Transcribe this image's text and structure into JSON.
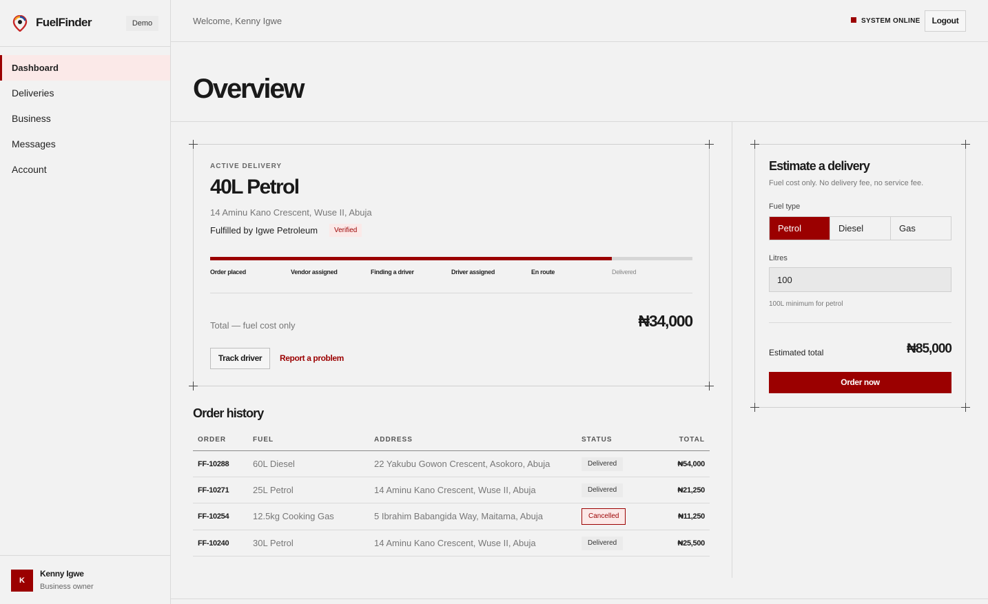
{
  "brand": {
    "name": "FuelFinder",
    "badge": "Demo",
    "logo_icon": "fuelfinder-pin-logo-icon"
  },
  "sidebar": {
    "items": [
      {
        "label": "Dashboard",
        "active": true
      },
      {
        "label": "Deliveries",
        "active": false
      },
      {
        "label": "Business",
        "active": false
      },
      {
        "label": "Messages",
        "active": false
      },
      {
        "label": "Account",
        "active": false
      }
    ]
  },
  "user": {
    "initial": "K",
    "name": "Kenny Igwe",
    "role": "Business owner"
  },
  "header": {
    "welcome": "Welcome, Kenny Igwe",
    "status": "SYSTEM ONLINE",
    "logout": "Logout"
  },
  "page": {
    "title": "Overview"
  },
  "active_delivery": {
    "eyebrow": "ACTIVE DELIVERY",
    "title": "40L Petrol",
    "address": "14 Aminu Kano Crescent, Wuse II, Abuja",
    "fulfilled_by": "Fulfilled by Igwe Petroleum",
    "verified": "Verified",
    "progress_fraction": 0.833,
    "steps": [
      {
        "label": "Order placed",
        "done": true
      },
      {
        "label": "Vendor assigned",
        "done": true
      },
      {
        "label": "Finding a driver",
        "done": true
      },
      {
        "label": "Driver assigned",
        "done": true
      },
      {
        "label": "En route",
        "done": true
      },
      {
        "label": "Delivered",
        "done": false
      }
    ],
    "total_label": "Total — fuel cost only",
    "total_amount": "₦34,000",
    "track_button": "Track driver",
    "report_link": "Report a problem"
  },
  "order_history": {
    "title": "Order history",
    "columns": [
      "ORDER",
      "FUEL",
      "ADDRESS",
      "STATUS",
      "TOTAL"
    ],
    "rows": [
      {
        "order": "FF-10288",
        "fuel": "60L Diesel",
        "address": "22 Yakubu Gowon Crescent, Asokoro, Abuja",
        "status": "Delivered",
        "total": "₦54,000"
      },
      {
        "order": "FF-10271",
        "fuel": "25L Petrol",
        "address": "14 Aminu Kano Crescent, Wuse II, Abuja",
        "status": "Delivered",
        "total": "₦21,250"
      },
      {
        "order": "FF-10254",
        "fuel": "12.5kg Cooking Gas",
        "address": "5 Ibrahim Babangida Way, Maitama, Abuja",
        "status": "Cancelled",
        "total": "₦11,250"
      },
      {
        "order": "FF-10240",
        "fuel": "30L Petrol",
        "address": "14 Aminu Kano Crescent, Wuse II, Abuja",
        "status": "Delivered",
        "total": "₦25,500"
      }
    ]
  },
  "estimate": {
    "title": "Estimate a delivery",
    "subtitle": "Fuel cost only. No delivery fee, no service fee.",
    "fuel_type_label": "Fuel type",
    "fuel_options": [
      "Petrol",
      "Diesel",
      "Gas"
    ],
    "selected_fuel": "Petrol",
    "litres_label": "Litres",
    "litres_value": "100",
    "hint": "100L minimum for petrol",
    "total_label": "Estimated total",
    "total_amount": "₦85,000",
    "order_button": "Order now"
  },
  "colors": {
    "accent": "#9b0000",
    "background": "#f2f2f2",
    "active_nav_bg": "#fbe9e8"
  }
}
